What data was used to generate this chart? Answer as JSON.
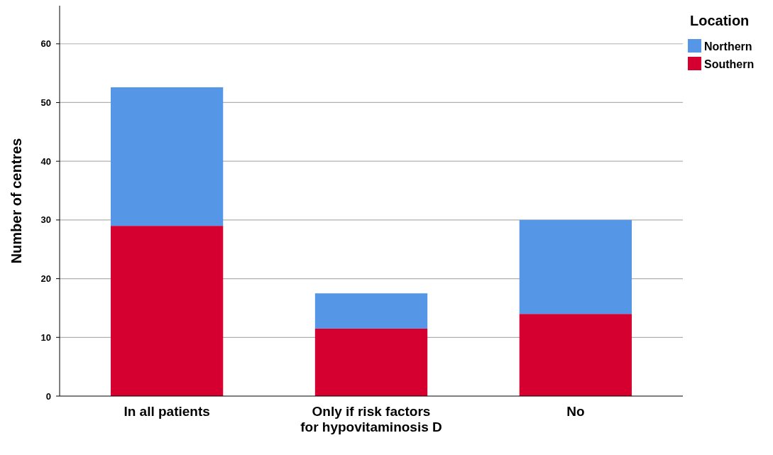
{
  "chart_data": {
    "type": "bar",
    "stacked": true,
    "ylabel": "Number of centres",
    "legend_title": "Location",
    "legend": "right",
    "grid": "y",
    "categories": [
      "In all patients",
      "Only if risk factors for hypovitaminosis D",
      "No"
    ],
    "series": [
      {
        "name": "Southern",
        "color": "#d5002f",
        "values": [
          29,
          11.5,
          14
        ]
      },
      {
        "name": "Northern",
        "color": "#5596e6",
        "values": [
          23.6,
          6,
          16
        ]
      }
    ],
    "ylim": [
      0,
      66.5
    ],
    "yticks": [
      0,
      10,
      20,
      30,
      40,
      50,
      60
    ]
  }
}
